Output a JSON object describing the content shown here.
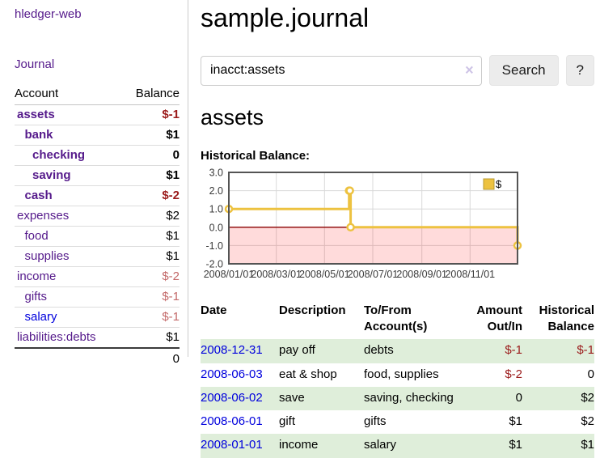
{
  "app": {
    "title": "hledger-web"
  },
  "sidebar": {
    "journal_link": "Journal",
    "accounts_table": {
      "headers": {
        "account": "Account",
        "balance": "Balance"
      },
      "rows": [
        {
          "account": "assets",
          "indent": 1,
          "bold": true,
          "balance": "$-1",
          "balance_style": "neg"
        },
        {
          "account": "bank",
          "indent": 2,
          "bold": true,
          "balance": "$1",
          "balance_style": "normal"
        },
        {
          "account": "checking",
          "indent": 3,
          "bold": true,
          "balance": "0",
          "balance_style": "normal"
        },
        {
          "account": "saving",
          "indent": 3,
          "bold": true,
          "balance": "$1",
          "balance_style": "normal"
        },
        {
          "account": "cash",
          "indent": 2,
          "bold": true,
          "balance": "$-2",
          "balance_style": "neg"
        },
        {
          "account": "expenses",
          "indent": 1,
          "bold": false,
          "balance": "$2",
          "balance_style": "normal"
        },
        {
          "account": "food",
          "indent": 2,
          "bold": false,
          "balance": "$1",
          "balance_style": "normal"
        },
        {
          "account": "supplies",
          "indent": 2,
          "bold": false,
          "balance": "$1",
          "balance_style": "normal"
        },
        {
          "account": "income",
          "indent": 1,
          "bold": false,
          "balance": "$-2",
          "balance_style": "neg-light"
        },
        {
          "account": "gifts",
          "indent": 2,
          "bold": false,
          "balance": "$-1",
          "balance_style": "neg-light"
        },
        {
          "account": "salary",
          "indent": 2,
          "bold": false,
          "balance": "$-1",
          "balance_style": "neg-light",
          "link_color": "blue"
        },
        {
          "account": "liabilities:debts",
          "indent": 1,
          "bold": false,
          "balance": "$1",
          "balance_style": "normal"
        }
      ],
      "total": "0"
    }
  },
  "main": {
    "title": "sample.journal",
    "search": {
      "value": "inacct:assets",
      "clear_icon": "×",
      "button_label": "Search",
      "help_button_label": "?"
    },
    "account_heading": "assets",
    "chart_heading": "Historical Balance:",
    "register_table": {
      "headers": {
        "date": "Date",
        "sort_icon": "∧",
        "description": "Description",
        "accounts": "To/From Account(s)",
        "amount": "Amount Out/In",
        "balance": "Historical Balance"
      },
      "rows": [
        {
          "date": "2008-12-31",
          "description": "pay off",
          "accounts": "debts",
          "amount": "$-1",
          "amount_negative": true,
          "balance": "$-1",
          "balance_negative": true,
          "highlight": true
        },
        {
          "date": "2008-06-03",
          "description": "eat & shop",
          "accounts": "food, supplies",
          "amount": "$-2",
          "amount_negative": true,
          "balance": "0",
          "balance_negative": false,
          "highlight": false
        },
        {
          "date": "2008-06-02",
          "description": "save",
          "accounts": "saving, checking",
          "amount": "0",
          "amount_negative": false,
          "balance": "$2",
          "balance_negative": false,
          "highlight": true
        },
        {
          "date": "2008-06-01",
          "description": "gift",
          "accounts": "gifts",
          "amount": "$1",
          "amount_negative": false,
          "balance": "$2",
          "balance_negative": false,
          "highlight": false
        },
        {
          "date": "2008-01-01",
          "description": "income",
          "accounts": "salary",
          "amount": "$1",
          "amount_negative": false,
          "balance": "$1",
          "balance_negative": false,
          "highlight": true
        }
      ]
    }
  },
  "chart_data": {
    "type": "line",
    "title": "Historical Balance",
    "step": true,
    "series": [
      {
        "name": "$",
        "color": "#edc240",
        "points": [
          [
            "2008-01-01",
            1
          ],
          [
            "2008-06-01",
            2
          ],
          [
            "2008-06-02",
            2
          ],
          [
            "2008-06-03",
            0
          ],
          [
            "2008-12-31",
            -1
          ]
        ]
      }
    ],
    "xlim": [
      "2008-01-01",
      "2008-12-31"
    ],
    "ylim": [
      -2,
      3
    ],
    "x_ticks": [
      "2008/01/01",
      "2008/03/01",
      "2008/05/01",
      "2008/07/01",
      "2008/09/01",
      "2008/11/01"
    ],
    "y_ticks": [
      3.0,
      2.0,
      1.0,
      0.0,
      -1.0,
      -2.0
    ],
    "grid": true,
    "legend_position": "top-right",
    "colors": {
      "grid_line": "#d8d8d8",
      "border": "#545454",
      "zero_line": "#8b0000",
      "negative_region": "rgba(255,0,0,0.14)",
      "tick_label": "#3a3a3a",
      "legend_swatch_border": "#b89b30"
    }
  }
}
